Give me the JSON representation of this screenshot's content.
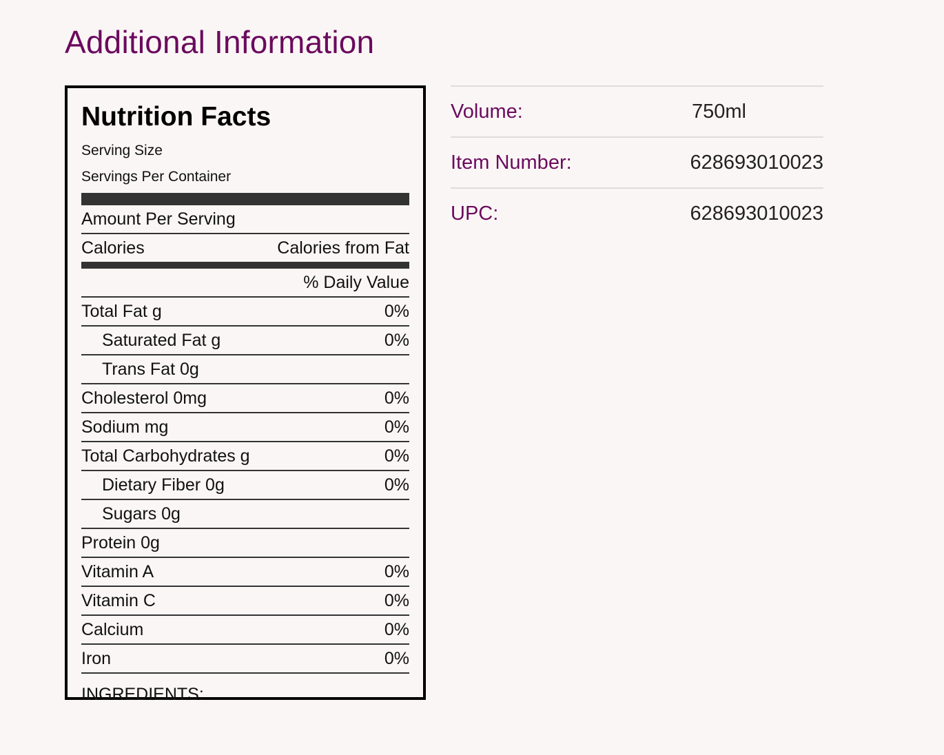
{
  "section_title": "Additional Information",
  "nutrition": {
    "title": "Nutrition Facts",
    "serving_size_label": "Serving Size",
    "servings_per_container_label": "Servings Per Container",
    "amount_per_serving_label": "Amount Per Serving",
    "calories_label": "Calories",
    "calories_from_fat_label": "Calories from Fat",
    "daily_value_label": "% Daily Value",
    "rows": [
      {
        "label": "Total Fat g",
        "value": "0%"
      },
      {
        "label": "Saturated Fat g",
        "value": "0%"
      },
      {
        "label": "Trans Fat 0g",
        "value": ""
      },
      {
        "label": "Cholesterol 0mg",
        "value": "0%"
      },
      {
        "label": "Sodium mg",
        "value": "0%"
      },
      {
        "label": "Total Carbohydrates g",
        "value": "0%"
      },
      {
        "label": "Dietary Fiber 0g",
        "value": "0%"
      },
      {
        "label": "Sugars 0g",
        "value": ""
      },
      {
        "label": "Protein 0g",
        "value": ""
      },
      {
        "label": "Vitamin A",
        "value": "0%"
      },
      {
        "label": "Vitamin C",
        "value": "0%"
      },
      {
        "label": "Calcium",
        "value": "0%"
      },
      {
        "label": "Iron",
        "value": "0%"
      }
    ],
    "ingredients_label": "INGREDIENTS:"
  },
  "info": [
    {
      "label": "Volume:",
      "value": "750ml"
    },
    {
      "label": "Item Number:",
      "value": "628693010023"
    },
    {
      "label": "UPC:",
      "value": "628693010023"
    }
  ],
  "colors": {
    "accent": "#6b0a5e",
    "background": "#faf6f5",
    "bar": "#333333"
  }
}
